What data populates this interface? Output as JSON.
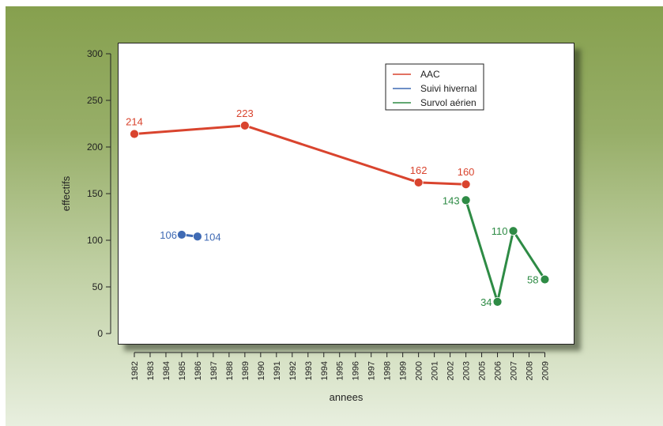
{
  "chart_data": {
    "type": "line",
    "xlabel": "annees",
    "ylabel": "effectifs",
    "ylim": [
      0,
      300
    ],
    "yticks": [
      0,
      50,
      100,
      150,
      200,
      250,
      300
    ],
    "categories": [
      "1982",
      "1983",
      "1984",
      "1985",
      "1986",
      "1987",
      "1988",
      "1989",
      "1990",
      "1991",
      "1992",
      "1993",
      "1994",
      "1995",
      "1996",
      "1997",
      "1998",
      "1999",
      "2000",
      "2001",
      "2002",
      "2003",
      "2005",
      "2006",
      "2007",
      "2008",
      "2009"
    ],
    "legend_position": "top-right",
    "series": [
      {
        "name": "AAC",
        "color": "#d9442e",
        "points": [
          {
            "x": "1982",
            "y": 214
          },
          {
            "x": "1989",
            "y": 223
          },
          {
            "x": "2000",
            "y": 162
          },
          {
            "x": "2003",
            "y": 160
          }
        ]
      },
      {
        "name": "Suivi hivernal",
        "color": "#3f6ab4",
        "points": [
          {
            "x": "1985",
            "y": 106
          },
          {
            "x": "1986",
            "y": 104
          }
        ]
      },
      {
        "name": "Survol aérien",
        "color": "#2e8b45",
        "points": [
          {
            "x": "2003",
            "y": 143
          },
          {
            "x": "2006",
            "y": 34
          },
          {
            "x": "2007",
            "y": 110
          },
          {
            "x": "2009",
            "y": 58
          }
        ]
      }
    ]
  }
}
